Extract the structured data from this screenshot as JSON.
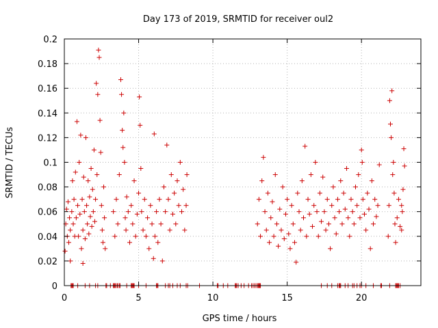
{
  "chart_data": {
    "type": "scatter",
    "title": "Day 173 of 2019, SRMTID for receiver oul2",
    "xlabel": "GPS time / hours",
    "ylabel": "SRMTID / TECUs",
    "xlim": [
      0,
      24
    ],
    "ylim": [
      0,
      0.2
    ],
    "xticks": [
      0,
      5,
      10,
      15,
      20
    ],
    "yticks": [
      0,
      0.02,
      0.04,
      0.06,
      0.08,
      0.1,
      0.12,
      0.14,
      0.16,
      0.18,
      0.2
    ],
    "xtick_labels": [
      "0",
      "5",
      "10",
      "15",
      "20"
    ],
    "ytick_labels": [
      "0",
      "0.02",
      "0.04",
      "0.06",
      "0.08",
      "0.1",
      "0.12",
      "0.14",
      "0.16",
      "0.18",
      "0.2"
    ],
    "grid": true,
    "marker": "+",
    "color": "#cc0000",
    "series": [
      {
        "name": "SRMTID",
        "points": [
          [
            0.05,
            0.028
          ],
          [
            0.1,
            0.05
          ],
          [
            0.15,
            0.062
          ],
          [
            0.2,
            0.04
          ],
          [
            0.25,
            0.068
          ],
          [
            0.3,
            0.035
          ],
          [
            0.35,
            0.055
          ],
          [
            0.4,
            0.045
          ],
          [
            0.5,
            0.06
          ],
          [
            0.55,
            0.085
          ],
          [
            0.6,
            0.05
          ],
          [
            0.65,
            0.07
          ],
          [
            0.7,
            0.04
          ],
          [
            0.75,
            0.092
          ],
          [
            0.8,
            0.055
          ],
          [
            0.85,
            0.133
          ],
          [
            0.9,
            0.065
          ],
          [
            0.95,
            0.04
          ],
          [
            1.0,
            0.1
          ],
          [
            1.05,
            0.058
          ],
          [
            1.1,
            0.122
          ],
          [
            1.15,
            0.03
          ],
          [
            1.2,
            0.07
          ],
          [
            1.25,
            0.045
          ],
          [
            1.3,
            0.088
          ],
          [
            1.35,
            0.06
          ],
          [
            1.4,
            0.038
          ],
          [
            1.45,
            0.12
          ],
          [
            1.5,
            0.065
          ],
          [
            1.55,
            0.05
          ],
          [
            1.6,
            0.085
          ],
          [
            1.65,
            0.042
          ],
          [
            1.7,
            0.072
          ],
          [
            1.75,
            0.056
          ],
          [
            1.8,
            0.095
          ],
          [
            1.85,
            0.048
          ],
          [
            1.9,
            0.078
          ],
          [
            1.95,
            0.06
          ],
          [
            2.0,
            0.11
          ],
          [
            2.05,
            0.052
          ],
          [
            2.1,
            0.07
          ],
          [
            2.15,
            0.164
          ],
          [
            2.2,
            0.09
          ],
          [
            2.25,
            0.155
          ],
          [
            2.3,
            0.191
          ],
          [
            2.35,
            0.185
          ],
          [
            2.4,
            0.134
          ],
          [
            2.45,
            0.108
          ],
          [
            2.5,
            0.065
          ],
          [
            2.55,
            0.045
          ],
          [
            2.6,
            0.035
          ],
          [
            2.65,
            0.08
          ],
          [
            2.7,
            0.055
          ],
          [
            2.75,
            0.03
          ],
          [
            0.4,
            0.02
          ],
          [
            1.25,
            0.018
          ],
          [
            3.3,
            0.06
          ],
          [
            3.4,
            0.04
          ],
          [
            3.5,
            0.07
          ],
          [
            3.6,
            0.05
          ],
          [
            3.7,
            0.09
          ],
          [
            3.8,
            0.167
          ],
          [
            3.85,
            0.155
          ],
          [
            3.9,
            0.126
          ],
          [
            3.95,
            0.112
          ],
          [
            4.0,
            0.14
          ],
          [
            4.05,
            0.1
          ],
          [
            4.1,
            0.055
          ],
          [
            4.15,
            0.045
          ],
          [
            4.2,
            0.072
          ],
          [
            4.3,
            0.06
          ],
          [
            4.4,
            0.035
          ],
          [
            4.5,
            0.065
          ],
          [
            4.6,
            0.05
          ],
          [
            4.7,
            0.085
          ],
          [
            4.8,
            0.04
          ],
          [
            4.9,
            0.058
          ],
          [
            5.0,
            0.075
          ],
          [
            5.05,
            0.153
          ],
          [
            5.1,
            0.13
          ],
          [
            5.15,
            0.095
          ],
          [
            5.2,
            0.06
          ],
          [
            5.3,
            0.045
          ],
          [
            5.4,
            0.07
          ],
          [
            5.5,
            0.04
          ],
          [
            5.6,
            0.055
          ],
          [
            5.7,
            0.03
          ],
          [
            5.8,
            0.065
          ],
          [
            5.9,
            0.05
          ],
          [
            6.0,
            0.022
          ],
          [
            6.05,
            0.123
          ],
          [
            6.1,
            0.04
          ],
          [
            6.2,
            0.06
          ],
          [
            6.3,
            0.035
          ],
          [
            6.4,
            0.07
          ],
          [
            6.5,
            0.05
          ],
          [
            6.6,
            0.02
          ],
          [
            6.7,
            0.08
          ],
          [
            6.8,
            0.06
          ],
          [
            6.9,
            0.114
          ],
          [
            7.0,
            0.07
          ],
          [
            7.1,
            0.045
          ],
          [
            7.2,
            0.09
          ],
          [
            7.3,
            0.058
          ],
          [
            7.4,
            0.075
          ],
          [
            7.5,
            0.05
          ],
          [
            7.6,
            0.085
          ],
          [
            7.7,
            0.065
          ],
          [
            7.8,
            0.1
          ],
          [
            7.9,
            0.06
          ],
          [
            8.0,
            0.078
          ],
          [
            8.1,
            0.045
          ],
          [
            8.2,
            0.065
          ],
          [
            8.25,
            0.09
          ],
          [
            13.0,
            0.05
          ],
          [
            13.1,
            0.07
          ],
          [
            13.2,
            0.04
          ],
          [
            13.3,
            0.085
          ],
          [
            13.4,
            0.104
          ],
          [
            13.5,
            0.06
          ],
          [
            13.6,
            0.045
          ],
          [
            13.7,
            0.075
          ],
          [
            13.8,
            0.035
          ],
          [
            13.9,
            0.055
          ],
          [
            14.0,
            0.068
          ],
          [
            14.1,
            0.04
          ],
          [
            14.2,
            0.09
          ],
          [
            14.3,
            0.05
          ],
          [
            14.4,
            0.032
          ],
          [
            14.5,
            0.062
          ],
          [
            14.6,
            0.045
          ],
          [
            14.7,
            0.08
          ],
          [
            14.8,
            0.038
          ],
          [
            14.9,
            0.058
          ],
          [
            15.0,
            0.07
          ],
          [
            15.1,
            0.042
          ],
          [
            15.2,
            0.03
          ],
          [
            15.3,
            0.065
          ],
          [
            15.4,
            0.05
          ],
          [
            15.5,
            0.035
          ],
          [
            15.6,
            0.019
          ],
          [
            15.7,
            0.075
          ],
          [
            15.8,
            0.06
          ],
          [
            15.9,
            0.045
          ],
          [
            16.0,
            0.085
          ],
          [
            16.1,
            0.055
          ],
          [
            16.2,
            0.113
          ],
          [
            16.3,
            0.04
          ],
          [
            16.4,
            0.07
          ],
          [
            16.5,
            0.058
          ],
          [
            16.6,
            0.09
          ],
          [
            16.7,
            0.048
          ],
          [
            16.8,
            0.065
          ],
          [
            16.9,
            0.1
          ],
          [
            17.0,
            0.06
          ],
          [
            17.1,
            0.04
          ],
          [
            17.2,
            0.075
          ],
          [
            17.3,
            0.052
          ],
          [
            17.4,
            0.088
          ],
          [
            17.5,
            0.06
          ],
          [
            17.6,
            0.045
          ],
          [
            17.7,
            0.07
          ],
          [
            17.8,
            0.05
          ],
          [
            17.9,
            0.03
          ],
          [
            18.0,
            0.065
          ],
          [
            18.1,
            0.08
          ],
          [
            18.2,
            0.055
          ],
          [
            18.3,
            0.042
          ],
          [
            18.4,
            0.07
          ],
          [
            18.5,
            0.06
          ],
          [
            18.6,
            0.085
          ],
          [
            18.7,
            0.05
          ],
          [
            18.8,
            0.075
          ],
          [
            18.9,
            0.062
          ],
          [
            19.0,
            0.095
          ],
          [
            19.1,
            0.055
          ],
          [
            19.2,
            0.04
          ],
          [
            19.3,
            0.07
          ],
          [
            19.4,
            0.06
          ],
          [
            19.5,
            0.05
          ],
          [
            19.6,
            0.08
          ],
          [
            19.7,
            0.065
          ],
          [
            19.8,
            0.09
          ],
          [
            19.9,
            0.055
          ],
          [
            20.0,
            0.11
          ],
          [
            20.05,
            0.1
          ],
          [
            20.1,
            0.07
          ],
          [
            20.2,
            0.058
          ],
          [
            20.3,
            0.045
          ],
          [
            20.4,
            0.075
          ],
          [
            20.5,
            0.062
          ],
          [
            20.6,
            0.03
          ],
          [
            20.7,
            0.085
          ],
          [
            20.8,
            0.05
          ],
          [
            20.9,
            0.07
          ],
          [
            21.0,
            0.056
          ],
          [
            21.1,
            0.065
          ],
          [
            21.2,
            0.098
          ],
          [
            21.8,
            0.04
          ],
          [
            21.85,
            0.065
          ],
          [
            21.9,
            0.15
          ],
          [
            21.95,
            0.131
          ],
          [
            22.0,
            0.12
          ],
          [
            22.05,
            0.158
          ],
          [
            22.1,
            0.09
          ],
          [
            22.15,
            0.1
          ],
          [
            22.2,
            0.075
          ],
          [
            22.25,
            0.05
          ],
          [
            22.3,
            0.035
          ],
          [
            22.4,
            0.055
          ],
          [
            22.5,
            0.07
          ],
          [
            22.6,
            0.048
          ],
          [
            22.7,
            0.065
          ],
          [
            22.75,
            0.06
          ],
          [
            22.8,
            0.078
          ],
          [
            22.85,
            0.111
          ],
          [
            22.9,
            0.097
          ],
          [
            22.7,
            0.045
          ]
        ]
      },
      {
        "name": "zero-line markers",
        "x": [
          0.45,
          0.5,
          0.55,
          0.6,
          0.9,
          1.4,
          1.7,
          2.1,
          2.25,
          2.8,
          2.85,
          3.1,
          3.3,
          3.35,
          3.4,
          3.45,
          3.55,
          3.6,
          3.7,
          3.75,
          4.2,
          4.5,
          4.55,
          4.6,
          4.65,
          4.7,
          5.0,
          5.5,
          6.2,
          6.25,
          6.3,
          6.8,
          7.0,
          7.1,
          7.3,
          7.6,
          7.8,
          8.2,
          8.3,
          9.1,
          10.3,
          10.35,
          10.7,
          11.0,
          11.5,
          11.55,
          11.6,
          11.7,
          11.9,
          12.1,
          12.4,
          12.6,
          12.7,
          12.8,
          12.9,
          13.0,
          13.05,
          13.1,
          13.15,
          13.2,
          17.3,
          17.7,
          18.0,
          18.4,
          18.5,
          18.55,
          18.6,
          18.9,
          19.1,
          19.4,
          19.5,
          19.7,
          19.9,
          20.0,
          20.3,
          20.8,
          21.3,
          21.35,
          21.9,
          22.3,
          22.35,
          22.4,
          22.45,
          22.5,
          22.6
        ]
      }
    ]
  }
}
